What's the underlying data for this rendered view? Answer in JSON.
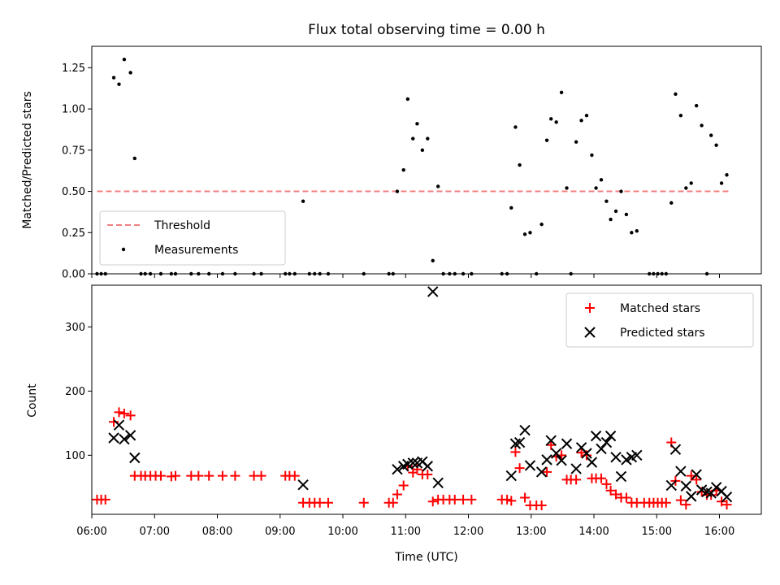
{
  "chart_data": [
    {
      "type": "scatter",
      "title": "Flux total observing time = 0.00 h",
      "xlabel": "",
      "ylabel": "Matched/Predicted stars",
      "xlim": [
        "06:00",
        "16:40"
      ],
      "ylim": [
        0,
        1.38
      ],
      "yticks": [
        "0.00",
        "0.25",
        "0.50",
        "0.75",
        "1.00",
        "1.25"
      ],
      "legend": {
        "placement": "lower-left",
        "entries": [
          "Threshold",
          "Measurements"
        ]
      },
      "threshold": {
        "name": "Threshold",
        "value": 0.5,
        "x_start": "06:05",
        "x_end": "16:10",
        "color": "#f08080",
        "style": "dashed"
      },
      "series": [
        {
          "name": "Measurements",
          "color": "#000000",
          "marker": "dot",
          "points": [
            [
              "06:05",
              0
            ],
            [
              "06:09",
              0
            ],
            [
              "06:13",
              0
            ],
            [
              "06:21",
              1.19
            ],
            [
              "06:26",
              1.15
            ],
            [
              "06:31",
              1.3
            ],
            [
              "06:37",
              1.22
            ],
            [
              "06:41",
              0.7
            ],
            [
              "06:47",
              0
            ],
            [
              "06:51",
              0
            ],
            [
              "06:56",
              0
            ],
            [
              "07:06",
              0
            ],
            [
              "07:16",
              0
            ],
            [
              "07:20",
              0
            ],
            [
              "07:35",
              0
            ],
            [
              "07:42",
              0
            ],
            [
              "07:52",
              0
            ],
            [
              "08:05",
              0
            ],
            [
              "08:17",
              0
            ],
            [
              "08:35",
              0
            ],
            [
              "08:42",
              0
            ],
            [
              "09:05",
              0
            ],
            [
              "09:09",
              0
            ],
            [
              "09:14",
              0
            ],
            [
              "09:22",
              0.44
            ],
            [
              "09:28",
              0
            ],
            [
              "09:33",
              0
            ],
            [
              "09:38",
              0
            ],
            [
              "09:46",
              0
            ],
            [
              "10:20",
              0
            ],
            [
              "10:44",
              0
            ],
            [
              "10:48",
              0
            ],
            [
              "10:52",
              0.5
            ],
            [
              "10:58",
              0.63
            ],
            [
              "11:02",
              1.06
            ],
            [
              "11:07",
              0.82
            ],
            [
              "11:11",
              0.91
            ],
            [
              "11:16",
              0.75
            ],
            [
              "11:21",
              0.82
            ],
            [
              "11:26",
              0.08
            ],
            [
              "11:31",
              0.53
            ],
            [
              "11:36",
              0
            ],
            [
              "11:42",
              0
            ],
            [
              "11:47",
              0
            ],
            [
              "11:55",
              0
            ],
            [
              "12:03",
              0
            ],
            [
              "12:32",
              0
            ],
            [
              "12:37",
              0
            ],
            [
              "12:41",
              0.4
            ],
            [
              "12:45",
              0.89
            ],
            [
              "12:49",
              0.66
            ],
            [
              "12:54",
              0.24
            ],
            [
              "12:59",
              0.25
            ],
            [
              "13:05",
              0
            ],
            [
              "13:10",
              0.3
            ],
            [
              "13:15",
              0.81
            ],
            [
              "13:19",
              0.94
            ],
            [
              "13:24",
              0.92
            ],
            [
              "13:29",
              1.1
            ],
            [
              "13:34",
              0.52
            ],
            [
              "13:38",
              0
            ],
            [
              "13:43",
              0.8
            ],
            [
              "13:48",
              0.93
            ],
            [
              "13:53",
              0.96
            ],
            [
              "13:58",
              0.72
            ],
            [
              "14:02",
              0.52
            ],
            [
              "14:07",
              0.57
            ],
            [
              "14:12",
              0.44
            ],
            [
              "14:16",
              0.33
            ],
            [
              "14:21",
              0.38
            ],
            [
              "14:26",
              0.5
            ],
            [
              "14:31",
              0.36
            ],
            [
              "14:36",
              0.25
            ],
            [
              "14:41",
              0.26
            ],
            [
              "14:53",
              0
            ],
            [
              "14:57",
              0
            ],
            [
              "15:01",
              0
            ],
            [
              "15:05",
              0
            ],
            [
              "15:09",
              0
            ],
            [
              "15:14",
              0.43
            ],
            [
              "15:18",
              1.09
            ],
            [
              "15:23",
              0.96
            ],
            [
              "15:28",
              0.52
            ],
            [
              "15:33",
              0.55
            ],
            [
              "15:38",
              1.02
            ],
            [
              "15:43",
              0.9
            ],
            [
              "15:48",
              0
            ],
            [
              "15:52",
              0.84
            ],
            [
              "15:57",
              0.78
            ],
            [
              "16:02",
              0.55
            ],
            [
              "16:07",
              0.6
            ]
          ]
        }
      ]
    },
    {
      "type": "scatter",
      "title": "",
      "xlabel": "Time (UTC)",
      "ylabel": "Count",
      "xlim": [
        "06:00",
        "16:40"
      ],
      "ylim": [
        8,
        365
      ],
      "yticks": [
        "100",
        "200",
        "300"
      ],
      "xticks": [
        "06:00",
        "07:00",
        "08:00",
        "09:00",
        "10:00",
        "11:00",
        "12:00",
        "13:00",
        "14:00",
        "15:00",
        "16:00"
      ],
      "legend": {
        "placement": "upper-right",
        "entries": [
          "Matched stars",
          "Predicted stars"
        ]
      },
      "series": [
        {
          "name": "Matched stars",
          "color": "#ff0000",
          "marker": "plus",
          "points": [
            [
              "06:05",
              31
            ],
            [
              "06:09",
              31
            ],
            [
              "06:13",
              31
            ],
            [
              "06:21",
              152
            ],
            [
              "06:26",
              167
            ],
            [
              "06:31",
              165
            ],
            [
              "06:37",
              162
            ],
            [
              "06:41",
              68
            ],
            [
              "06:47",
              68
            ],
            [
              "06:51",
              68
            ],
            [
              "06:56",
              68
            ],
            [
              "07:01",
              68
            ],
            [
              "07:06",
              68
            ],
            [
              "07:16",
              67
            ],
            [
              "07:20",
              68
            ],
            [
              "07:35",
              68
            ],
            [
              "07:42",
              68
            ],
            [
              "07:52",
              68
            ],
            [
              "08:05",
              68
            ],
            [
              "08:17",
              68
            ],
            [
              "08:35",
              68
            ],
            [
              "08:42",
              68
            ],
            [
              "09:05",
              68
            ],
            [
              "09:09",
              68
            ],
            [
              "09:14",
              68
            ],
            [
              "09:22",
              26
            ],
            [
              "09:28",
              26
            ],
            [
              "09:33",
              26
            ],
            [
              "09:38",
              26
            ],
            [
              "09:46",
              26
            ],
            [
              "10:20",
              26
            ],
            [
              "10:44",
              26
            ],
            [
              "10:48",
              26
            ],
            [
              "10:52",
              39
            ],
            [
              "10:58",
              53
            ],
            [
              "11:02",
              83
            ],
            [
              "11:07",
              73
            ],
            [
              "11:11",
              78
            ],
            [
              "11:16",
              70
            ],
            [
              "11:21",
              70
            ],
            [
              "11:26",
              28
            ],
            [
              "11:31",
              31
            ],
            [
              "11:36",
              31
            ],
            [
              "11:42",
              31
            ],
            [
              "11:47",
              31
            ],
            [
              "11:55",
              31
            ],
            [
              "12:03",
              31
            ],
            [
              "12:32",
              31
            ],
            [
              "12:37",
              31
            ],
            [
              "12:41",
              29
            ],
            [
              "12:45",
              105
            ],
            [
              "12:49",
              80
            ],
            [
              "12:54",
              34
            ],
            [
              "12:59",
              22
            ],
            [
              "13:05",
              22
            ],
            [
              "13:10",
              22
            ],
            [
              "13:15",
              74
            ],
            [
              "13:19",
              116
            ],
            [
              "13:24",
              98
            ],
            [
              "13:29",
              100
            ],
            [
              "13:34",
              62
            ],
            [
              "13:38",
              62
            ],
            [
              "13:43",
              62
            ],
            [
              "13:48",
              104
            ],
            [
              "13:53",
              100
            ],
            [
              "13:58",
              64
            ],
            [
              "14:02",
              64
            ],
            [
              "14:07",
              64
            ],
            [
              "14:12",
              55
            ],
            [
              "14:16",
              45
            ],
            [
              "14:21",
              39
            ],
            [
              "14:26",
              34
            ],
            [
              "14:31",
              34
            ],
            [
              "14:36",
              26
            ],
            [
              "14:41",
              26
            ],
            [
              "14:48",
              26
            ],
            [
              "14:53",
              26
            ],
            [
              "14:57",
              26
            ],
            [
              "15:01",
              26
            ],
            [
              "15:05",
              26
            ],
            [
              "15:09",
              26
            ],
            [
              "15:14",
              120
            ],
            [
              "15:18",
              60
            ],
            [
              "15:23",
              30
            ],
            [
              "15:28",
              23
            ],
            [
              "15:33",
              68
            ],
            [
              "15:38",
              62
            ],
            [
              "15:43",
              43
            ],
            [
              "15:48",
              38
            ],
            [
              "15:52",
              38
            ],
            [
              "15:57",
              45
            ],
            [
              "16:02",
              28
            ],
            [
              "16:07",
              23
            ]
          ]
        },
        {
          "name": "Predicted stars",
          "color": "#000000",
          "marker": "x",
          "points": [
            [
              "06:21",
              127
            ],
            [
              "06:26",
              147
            ],
            [
              "06:31",
              125
            ],
            [
              "06:37",
              131
            ],
            [
              "06:41",
              96
            ],
            [
              "09:22",
              54
            ],
            [
              "10:52",
              78
            ],
            [
              "10:58",
              83
            ],
            [
              "11:02",
              86
            ],
            [
              "11:07",
              88
            ],
            [
              "11:11",
              88
            ],
            [
              "11:16",
              90
            ],
            [
              "11:21",
              83
            ],
            [
              "11:26",
              355
            ],
            [
              "11:31",
              57
            ],
            [
              "12:41",
              68
            ],
            [
              "12:45",
              118
            ],
            [
              "12:49",
              120
            ],
            [
              "12:54",
              139
            ],
            [
              "12:59",
              84
            ],
            [
              "13:10",
              74
            ],
            [
              "13:15",
              93
            ],
            [
              "13:19",
              123
            ],
            [
              "13:24",
              103
            ],
            [
              "13:29",
              92
            ],
            [
              "13:34",
              118
            ],
            [
              "13:43",
              79
            ],
            [
              "13:48",
              112
            ],
            [
              "13:53",
              103
            ],
            [
              "13:58",
              89
            ],
            [
              "14:02",
              130
            ],
            [
              "14:07",
              110
            ],
            [
              "14:12",
              120
            ],
            [
              "14:16",
              130
            ],
            [
              "14:21",
              97
            ],
            [
              "14:26",
              67
            ],
            [
              "14:31",
              93
            ],
            [
              "14:36",
              97
            ],
            [
              "14:41",
              100
            ],
            [
              "15:14",
              53
            ],
            [
              "15:18",
              109
            ],
            [
              "15:23",
              75
            ],
            [
              "15:28",
              52
            ],
            [
              "15:33",
              36
            ],
            [
              "15:38",
              70
            ],
            [
              "15:43",
              46
            ],
            [
              "15:48",
              43
            ],
            [
              "15:52",
              41
            ],
            [
              "15:57",
              50
            ],
            [
              "16:02",
              44
            ],
            [
              "16:07",
              35
            ]
          ]
        }
      ]
    }
  ]
}
